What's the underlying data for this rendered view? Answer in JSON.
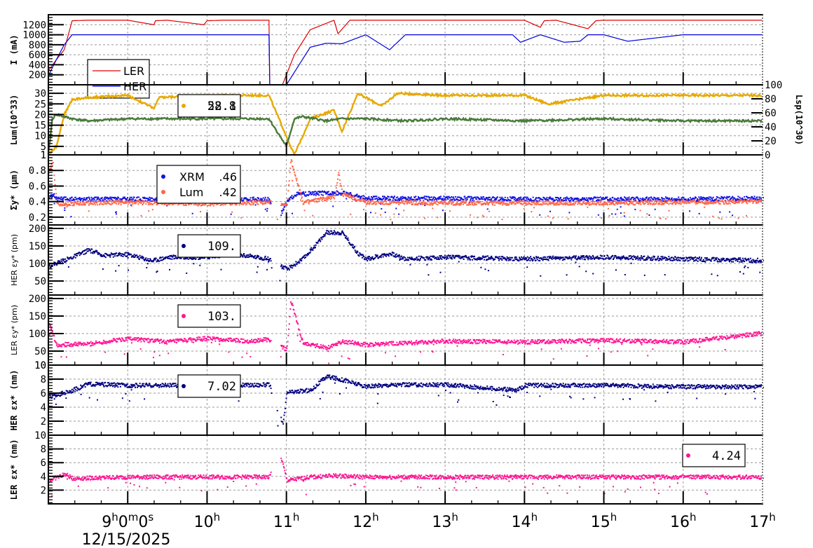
{
  "chart_data": [
    {
      "panel": "beam-current",
      "type": "line",
      "ylabel": "I (mA)",
      "yticks": [
        200,
        400,
        600,
        800,
        1000,
        1200
      ],
      "ylim": [
        0,
        1400
      ],
      "legend": [
        {
          "name": "LER",
          "color": "#e00000"
        },
        {
          "name": "HER",
          "color": "#0000e0"
        }
      ],
      "series": [
        {
          "name": "LER",
          "color": "#e00000",
          "x": [
            8.0,
            8.1,
            8.2,
            8.3,
            8.5,
            9.0,
            9.33,
            9.35,
            9.5,
            9.96,
            10.0,
            10.2,
            10.5,
            10.78,
            10.79,
            10.95,
            11.1,
            11.3,
            11.6,
            11.65,
            11.8,
            12.0,
            13.0,
            14.0,
            14.2,
            14.25,
            14.4,
            14.8,
            14.9,
            15.0,
            16.0,
            17.0
          ],
          "values": [
            280,
            500,
            700,
            1280,
            1290,
            1290,
            1200,
            1280,
            1290,
            1200,
            1280,
            1290,
            1290,
            1290,
            0,
            0,
            600,
            1100,
            1290,
            1020,
            1290,
            1290,
            1290,
            1290,
            1150,
            1280,
            1290,
            1120,
            1280,
            1290,
            1290,
            1290
          ]
        },
        {
          "name": "HER",
          "color": "#0000e0",
          "x": [
            8.0,
            8.1,
            8.2,
            8.3,
            8.5,
            9.0,
            10.0,
            10.78,
            10.79,
            10.95,
            11.0,
            11.3,
            11.5,
            11.7,
            12.0,
            12.2,
            12.3,
            12.5,
            13.0,
            13.85,
            13.95,
            14.2,
            14.5,
            14.7,
            14.8,
            15.0,
            15.3,
            16.0,
            17.0
          ],
          "values": [
            180,
            500,
            800,
            1000,
            1000,
            1000,
            1000,
            1000,
            0,
            0,
            0,
            750,
            830,
            820,
            1000,
            800,
            700,
            1000,
            1000,
            1000,
            850,
            1000,
            850,
            870,
            1000,
            1000,
            870,
            1000,
            1000
          ]
        }
      ]
    },
    {
      "panel": "luminosity",
      "type": "line",
      "ylabel": "Lum(10^33)",
      "ylabel_right": "Lsp(10^30)",
      "yticks": [
        1,
        5,
        10,
        15,
        20,
        25,
        30
      ],
      "yticks_right": [
        0,
        20,
        40,
        60,
        80,
        100
      ],
      "ylim": [
        1,
        34
      ],
      "legend": [
        {
          "value": "28.8",
          "overlay_value": "52.1",
          "color": "#e8a800"
        }
      ],
      "series": [
        {
          "name": "Lum",
          "color": "#e8a800",
          "x": [
            8.0,
            8.1,
            8.2,
            8.3,
            8.5,
            9.0,
            9.33,
            9.4,
            10.0,
            10.5,
            10.78,
            11.1,
            11.3,
            11.6,
            11.7,
            11.9,
            12.2,
            12.4,
            13.0,
            14.0,
            14.3,
            15.0,
            16.0,
            17.0
          ],
          "values": [
            1,
            5,
            20,
            27,
            28,
            29,
            23,
            28,
            29,
            29,
            29,
            1,
            18,
            22,
            12,
            30,
            24,
            30,
            29,
            29,
            25,
            29,
            29,
            29
          ]
        },
        {
          "name": "Lsp",
          "color": "#4a7a3a",
          "x": [
            8.0,
            8.05,
            8.1,
            8.3,
            8.5,
            9.0,
            10.0,
            10.78,
            11.0,
            11.1,
            11.2,
            11.5,
            11.7,
            12.0,
            12.5,
            13.0,
            14.0,
            15.0,
            16.0,
            17.0
          ],
          "values": [
            1,
            18,
            20,
            18,
            17,
            18,
            18,
            18,
            5,
            18,
            19,
            17,
            18,
            18,
            17,
            18,
            17,
            18,
            17,
            17
          ]
        }
      ]
    },
    {
      "panel": "beam-size",
      "type": "scatter",
      "ylabel": "Σy* (μm)",
      "yticks": [
        0.2,
        0.4,
        0.6,
        0.8,
        1
      ],
      "ylim": [
        0.1,
        1.0
      ],
      "legend": [
        {
          "name": "XRM",
          "value": ".46",
          "color": "#1010e0"
        },
        {
          "name": "Lum",
          "value": ".42",
          "color": "#ff6347"
        }
      ],
      "series": [
        {
          "name": "XRM",
          "color": "#1010e0",
          "x": [
            8.0,
            8.05,
            8.1,
            9.0,
            10.0,
            10.78,
            10.9,
            11.0,
            11.1,
            11.5,
            11.7,
            12.0,
            13.0,
            14.0,
            15.0,
            16.0,
            17.0
          ],
          "values": [
            0.45,
            0.5,
            0.44,
            0.44,
            0.43,
            0.44,
            0.2,
            0.4,
            0.5,
            0.52,
            0.52,
            0.45,
            0.45,
            0.44,
            0.44,
            0.44,
            0.45
          ]
        },
        {
          "name": "Lum",
          "color": "#ff6347",
          "x": [
            8.0,
            8.05,
            8.1,
            9.0,
            10.0,
            10.78,
            11.0,
            11.05,
            11.2,
            11.6,
            11.65,
            11.7,
            12.0,
            13.0,
            14.0,
            15.0,
            16.0,
            17.0
          ],
          "values": [
            0.8,
            0.9,
            0.38,
            0.4,
            0.38,
            0.4,
            0.35,
            0.95,
            0.4,
            0.47,
            0.78,
            0.5,
            0.4,
            0.39,
            0.39,
            0.39,
            0.4,
            0.41
          ]
        }
      ]
    },
    {
      "panel": "her-vertical-emittance",
      "type": "scatter",
      "ylabel": "HER εy* (pm)",
      "yticks": [
        50,
        100,
        150,
        200
      ],
      "ylim": [
        10,
        210
      ],
      "legend": [
        {
          "value": "109.",
          "color": "#000080"
        }
      ],
      "series": [
        {
          "name": "HER εy*",
          "color": "#000080",
          "x": [
            8.0,
            8.3,
            8.5,
            8.7,
            9.0,
            9.3,
            9.5,
            10.0,
            10.3,
            10.78,
            11.0,
            11.2,
            11.5,
            11.7,
            11.9,
            12.0,
            12.3,
            12.5,
            13.0,
            14.0,
            15.0,
            16.0,
            17.0
          ],
          "values": [
            95,
            120,
            140,
            125,
            128,
            110,
            120,
            120,
            130,
            115,
            85,
            115,
            190,
            190,
            130,
            115,
            130,
            115,
            120,
            115,
            120,
            115,
            110
          ]
        }
      ]
    },
    {
      "panel": "ler-vertical-emittance",
      "type": "scatter",
      "ylabel": "LER εy* (pm)",
      "yticks": [
        10,
        50,
        100,
        150,
        200
      ],
      "ylim": [
        10,
        210
      ],
      "legend": [
        {
          "value": "103.",
          "color": "#ff1493"
        }
      ],
      "series": [
        {
          "name": "LER εy*",
          "color": "#ff1493",
          "x": [
            8.0,
            8.05,
            8.1,
            8.5,
            9.0,
            9.5,
            10.0,
            10.5,
            10.78,
            11.0,
            11.05,
            11.2,
            11.5,
            11.7,
            12.0,
            13.0,
            14.0,
            15.0,
            16.0,
            17.0
          ],
          "values": [
            140,
            100,
            70,
            72,
            88,
            78,
            88,
            80,
            85,
            55,
            195,
            75,
            62,
            80,
            70,
            80,
            78,
            82,
            78,
            103
          ]
        }
      ]
    },
    {
      "panel": "her-horizontal-emittance",
      "type": "scatter",
      "ylabel": "HER εx* (nm)",
      "yticks": [
        2,
        4,
        6,
        8,
        10
      ],
      "ylim": [
        0,
        10
      ],
      "legend": [
        {
          "value": "7.02",
          "color": "#000080"
        }
      ],
      "series": [
        {
          "name": "HER εx*",
          "color": "#000080",
          "x": [
            8.0,
            8.3,
            8.5,
            9.0,
            10.0,
            10.78,
            10.95,
            11.0,
            11.3,
            11.5,
            11.7,
            12.0,
            12.3,
            13.0,
            13.9,
            14.0,
            15.0,
            16.0,
            17.0
          ],
          "values": [
            5.5,
            6.5,
            7.4,
            7.2,
            7.2,
            7.3,
            1.5,
            6.2,
            6.5,
            8.5,
            8.0,
            7.0,
            7.3,
            7.3,
            6.5,
            7.2,
            7.2,
            7.0,
            7.0
          ]
        }
      ]
    },
    {
      "panel": "ler-horizontal-emittance",
      "type": "scatter",
      "ylabel": "LER εx* (nm)",
      "yticks": [
        2,
        4,
        6,
        8,
        10
      ],
      "ylim": [
        0,
        10
      ],
      "legend": [
        {
          "value": "4.24",
          "color": "#ff1493"
        }
      ],
      "series": [
        {
          "name": "LER εx*",
          "color": "#ff1493",
          "x": [
            8.0,
            8.2,
            8.3,
            9.0,
            10.0,
            10.78,
            10.9,
            11.0,
            11.3,
            11.6,
            12.0,
            13.0,
            14.0,
            15.0,
            16.0,
            17.0
          ],
          "values": [
            3.5,
            4.4,
            3.8,
            4.0,
            4.0,
            4.0,
            8.0,
            3.5,
            4.0,
            4.2,
            4.0,
            4.0,
            4.0,
            4.0,
            4.0,
            4.0
          ]
        }
      ]
    }
  ],
  "x_axis": {
    "xlim": [
      8.0,
      17.0
    ],
    "ticks": [
      {
        "value": 9,
        "label": "9",
        "sup": "h",
        "label2": "0",
        "sup2": "m",
        "label3": "0",
        "sup3": "s"
      },
      {
        "value": 10,
        "label": "10",
        "sup": "h"
      },
      {
        "value": 11,
        "label": "11",
        "sup": "h"
      },
      {
        "value": 12,
        "label": "12",
        "sup": "h"
      },
      {
        "value": 13,
        "label": "13",
        "sup": "h"
      },
      {
        "value": 14,
        "label": "14",
        "sup": "h"
      },
      {
        "value": 15,
        "label": "15",
        "sup": "h"
      },
      {
        "value": 16,
        "label": "16",
        "sup": "h"
      },
      {
        "value": 17,
        "label": "17",
        "sup": "h"
      }
    ],
    "date": "12/15/2025"
  }
}
